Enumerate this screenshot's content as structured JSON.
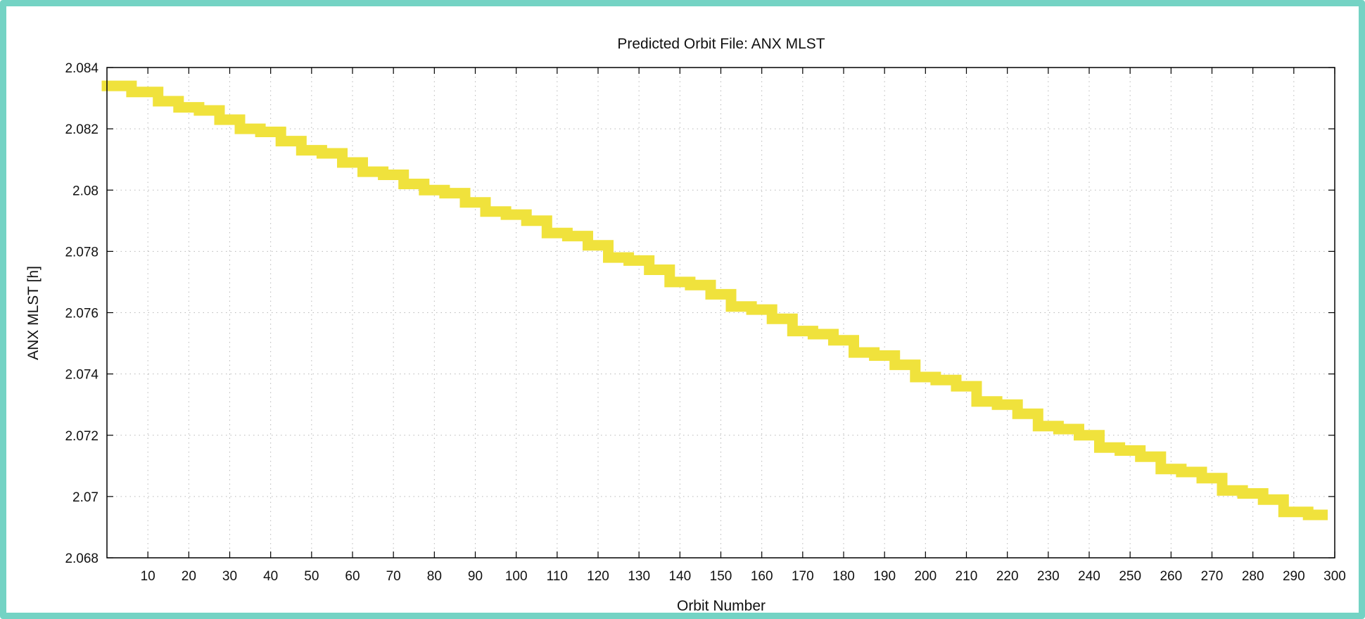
{
  "colors": {
    "frame_border": "#74d3c4",
    "series": "#f0e23c",
    "grid": "#b8b8b8",
    "axis": "#000000"
  },
  "chart_data": {
    "type": "line",
    "title": "Predicted Orbit File: ANX MLST",
    "xlabel": "Orbit Number",
    "ylabel": "ANX MLST [h]",
    "xlim": [
      0,
      300
    ],
    "ylim": [
      2.068,
      2.084
    ],
    "xticks": [
      10,
      20,
      30,
      40,
      50,
      60,
      70,
      80,
      90,
      100,
      110,
      120,
      130,
      140,
      150,
      160,
      170,
      180,
      190,
      200,
      210,
      220,
      230,
      240,
      250,
      260,
      270,
      280,
      290,
      300
    ],
    "xtick_labels": [
      "10",
      "20",
      "30",
      "40",
      "50",
      "60",
      "70",
      "80",
      "90",
      "100",
      "110",
      "120",
      "130",
      "140",
      "150",
      "160",
      "170",
      "180",
      "190",
      "200",
      "210",
      "220",
      "230",
      "240",
      "250",
      "260",
      "270",
      "280",
      "290",
      "300"
    ],
    "yticks": [
      2.068,
      2.07,
      2.072,
      2.074,
      2.076,
      2.078,
      2.08,
      2.082,
      2.084
    ],
    "ytick_labels": [
      "2.068",
      "2.07",
      "2.072",
      "2.074",
      "2.076",
      "2.078",
      "2.08",
      "2.082",
      "2.084"
    ],
    "grid": true,
    "legend": "none",
    "series": [
      {
        "x": [
          0,
          5,
          7,
          10,
          15,
          20,
          25,
          30,
          35,
          40,
          45,
          50,
          55,
          60,
          65,
          70,
          75,
          80,
          85,
          90,
          95,
          100,
          105,
          110,
          115,
          120,
          125,
          130,
          135,
          140,
          145,
          150,
          155,
          160,
          165,
          170,
          175,
          180,
          185,
          190,
          195,
          200,
          205,
          210,
          215,
          220,
          225,
          230,
          235,
          240,
          245,
          250,
          255,
          260,
          265,
          270,
          275,
          280,
          285,
          290,
          297
        ],
        "y": [
          2.0834,
          2.0834,
          2.0832,
          2.0832,
          2.0829,
          2.0827,
          2.0826,
          2.0823,
          2.082,
          2.0819,
          2.0816,
          2.0813,
          2.0812,
          2.0809,
          2.0806,
          2.0805,
          2.0802,
          2.08,
          2.0799,
          2.0796,
          2.0793,
          2.0792,
          2.079,
          2.0786,
          2.0785,
          2.0782,
          2.0778,
          2.0777,
          2.0774,
          2.077,
          2.0769,
          2.0766,
          2.0762,
          2.0761,
          2.0758,
          2.0754,
          2.0753,
          2.0751,
          2.0747,
          2.0746,
          2.0743,
          2.0739,
          2.0738,
          2.0736,
          2.0731,
          2.073,
          2.0727,
          2.0723,
          2.0722,
          2.072,
          2.0716,
          2.0715,
          2.0713,
          2.0709,
          2.0708,
          2.0706,
          2.0702,
          2.0701,
          2.0699,
          2.0695,
          2.0694
        ]
      }
    ]
  }
}
